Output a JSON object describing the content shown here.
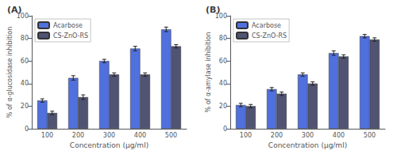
{
  "chart_data": [
    {
      "type": "bar",
      "title": "(A)",
      "x_label": "Concentration (μg/ml)",
      "y_label": "% of α-glucosidase inhibition",
      "categories": [
        "100",
        "200",
        "300",
        "400",
        "500"
      ],
      "series": [
        {
          "name": "Acarbose",
          "values": [
            25,
            45,
            60,
            71,
            88
          ],
          "errors": [
            1.5,
            2.0,
            1.5,
            2.0,
            2.0
          ]
        },
        {
          "name": "CS-ZnO-RS",
          "values": [
            14,
            28,
            48,
            48,
            73
          ],
          "errors": [
            1.5,
            2.0,
            1.5,
            1.5,
            1.5
          ]
        }
      ],
      "ylim": [
        0,
        100
      ],
      "yticks": [
        0,
        20,
        40,
        60,
        80,
        100
      ],
      "grid": false,
      "legend": "upper left"
    },
    {
      "type": "bar",
      "title": "(B)",
      "x_label": "Concentration (μg/ml)",
      "y_label": "% of α-amylase inhibition",
      "categories": [
        "100",
        "200",
        "300",
        "400",
        "500"
      ],
      "series": [
        {
          "name": "Acarbose",
          "values": [
            21,
            35,
            48,
            67,
            82
          ],
          "errors": [
            1.5,
            1.5,
            1.5,
            2.0,
            1.5
          ]
        },
        {
          "name": "CS-ZnO-RS",
          "values": [
            20,
            31,
            40,
            64,
            79
          ],
          "errors": [
            1.5,
            1.5,
            1.5,
            1.5,
            1.5
          ]
        }
      ],
      "ylim": [
        0,
        100
      ],
      "yticks": [
        0,
        20,
        40,
        60,
        80,
        100
      ],
      "grid": false,
      "legend": "upper left"
    }
  ]
}
